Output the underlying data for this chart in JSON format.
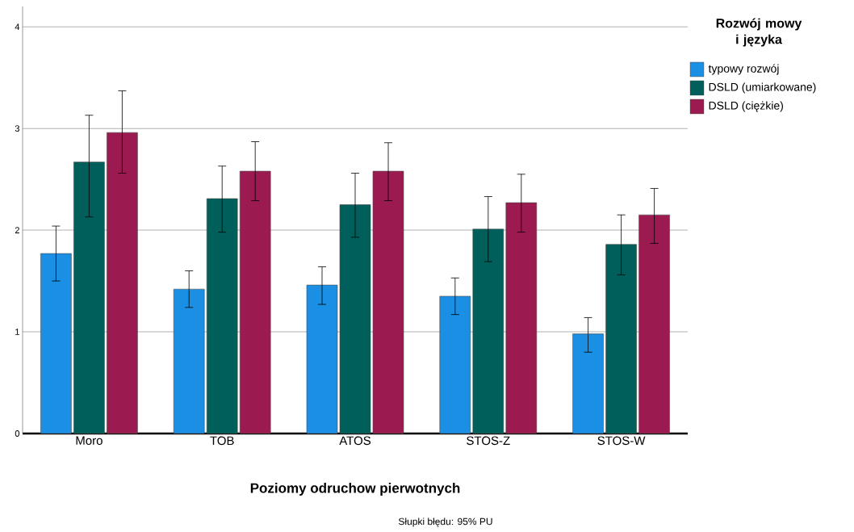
{
  "chart_data": {
    "type": "bar",
    "xlabel": "Poziomy odruchow pierwotnych",
    "legend_title": "Rozwój mowy i języka",
    "annotations": [
      "Słupki błędu: 95% PU"
    ],
    "categories": [
      "Moro",
      "TOB",
      "ATOS",
      "STOS-Z",
      "STOS-W"
    ],
    "series": [
      {
        "name": "typowy rozwój",
        "color": "#1a8fe3",
        "values": [
          1.77,
          1.42,
          1.46,
          1.35,
          0.98
        ],
        "errors": [
          [
            1.5,
            2.04
          ],
          [
            1.24,
            1.6
          ],
          [
            1.27,
            1.64
          ],
          [
            1.17,
            1.53
          ],
          [
            0.8,
            1.14
          ]
        ]
      },
      {
        "name": "DSLD (umiarkowane)",
        "color": "#005f5a",
        "values": [
          2.67,
          2.31,
          2.25,
          2.01,
          1.86
        ],
        "errors": [
          [
            2.13,
            3.13
          ],
          [
            1.98,
            2.63
          ],
          [
            1.93,
            2.56
          ],
          [
            1.69,
            2.33
          ],
          [
            1.56,
            2.15
          ]
        ]
      },
      {
        "name": "DSLD (ciężkie)",
        "color": "#9b1a50",
        "values": [
          2.96,
          2.58,
          2.58,
          2.27,
          2.15
        ],
        "errors": [
          [
            2.56,
            3.37
          ],
          [
            2.29,
            2.87
          ],
          [
            2.29,
            2.86
          ],
          [
            1.98,
            2.55
          ],
          [
            1.87,
            2.41
          ]
        ]
      }
    ],
    "ylim": [
      0,
      4.2
    ],
    "yticks": [
      0,
      1,
      2,
      3,
      4
    ],
    "grid": "y",
    "legend": "right"
  }
}
